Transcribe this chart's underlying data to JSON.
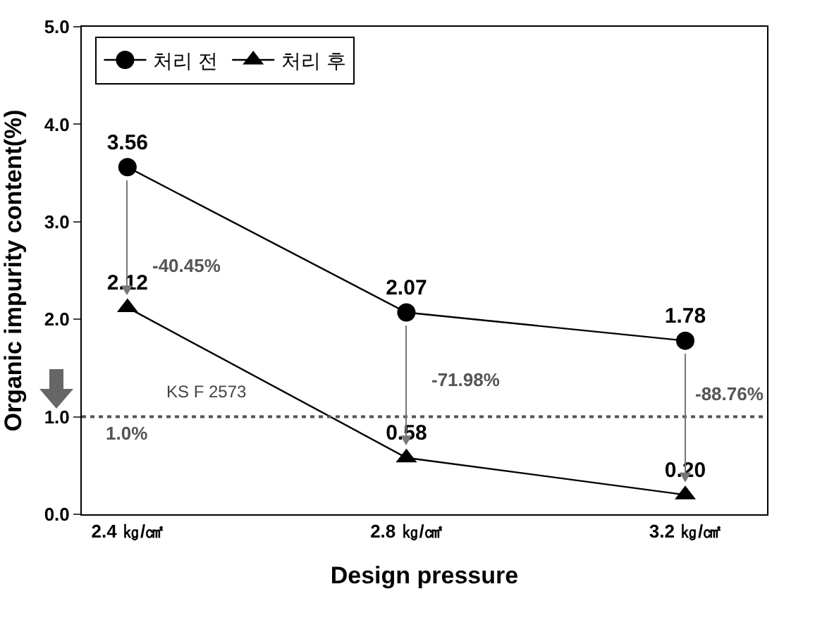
{
  "chart_data": {
    "type": "line",
    "xlabel": "Design pressure",
    "ylabel": "Organic impurity content(%)",
    "categories": [
      "2.4 ㎏/㎠",
      "2.8 ㎏/㎠",
      "3.2 ㎏/㎠"
    ],
    "series": [
      {
        "name": "처리 전",
        "color": "#000000",
        "marker": "circle",
        "values": [
          3.56,
          2.07,
          1.78
        ],
        "value_labels": [
          "3.56",
          "2.07",
          "1.78"
        ]
      },
      {
        "name": "처리 후",
        "color": "#000000",
        "marker": "triangle",
        "values": [
          2.12,
          0.58,
          0.2
        ],
        "value_labels": [
          "2.12",
          "0.58",
          "0.20"
        ]
      }
    ],
    "ylim": [
      0,
      5
    ],
    "yticks": [
      {
        "value": 0,
        "label": "0.0"
      },
      {
        "value": 1,
        "label": "1.0"
      },
      {
        "value": 2,
        "label": "2.0"
      },
      {
        "value": 3,
        "label": "3.0"
      },
      {
        "value": 4,
        "label": "4.0"
      },
      {
        "value": 5,
        "label": "5.0"
      }
    ],
    "grid": false,
    "legend": "top left",
    "line_style": "solid",
    "ref_lines": [
      {
        "axis": "y",
        "value": 1.0,
        "label": "KS F 2573",
        "color": "#555555",
        "line_style": "dotted"
      }
    ],
    "annotations": [
      "-40.45%",
      "-71.98%",
      "-88.76%",
      "1.0%"
    ]
  }
}
